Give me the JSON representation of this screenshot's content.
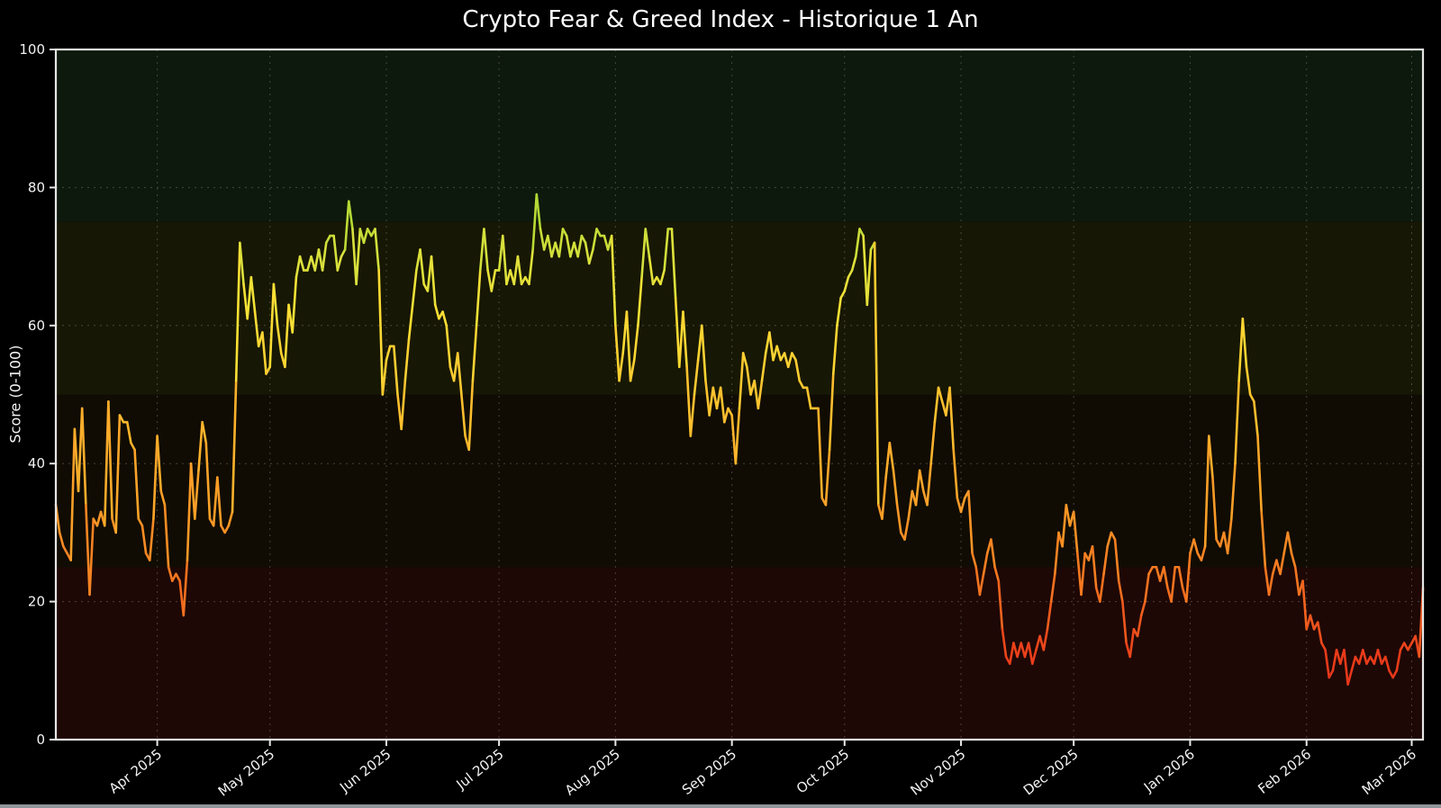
{
  "chart_data": {
    "type": "line",
    "title": "Crypto Fear & Greed Index - Historique 1 An",
    "ylabel": "Score (0-100)",
    "ylim": [
      0,
      100
    ],
    "y_ticks": [
      0,
      20,
      40,
      60,
      80,
      100
    ],
    "grid": true,
    "legend": null,
    "x_tick_labels": [
      "Apr 2025",
      "May 2025",
      "Jun 2025",
      "Jul 2025",
      "Aug 2025",
      "Sep 2025",
      "Oct 2025",
      "Nov 2025",
      "Dec 2025",
      "Jan 2026",
      "Feb 2026",
      "Mar 2026"
    ],
    "x_tick_day_offsets": [
      27,
      57,
      88,
      118,
      149,
      180,
      210,
      241,
      271,
      302,
      333,
      361
    ],
    "x_range_days": 365,
    "values": [
      34,
      30,
      28,
      27,
      26,
      45,
      36,
      48,
      34,
      21,
      32,
      31,
      33,
      31,
      49,
      32,
      30,
      47,
      46,
      46,
      43,
      42,
      32,
      31,
      27,
      26,
      32,
      44,
      36,
      34,
      25,
      23,
      24,
      23,
      18,
      26,
      40,
      32,
      39,
      46,
      43,
      32,
      31,
      38,
      31,
      30,
      31,
      33,
      52,
      72,
      66,
      61,
      67,
      62,
      57,
      59,
      53,
      54,
      66,
      60,
      56,
      54,
      63,
      59,
      67,
      70,
      68,
      68,
      70,
      68,
      71,
      68,
      72,
      73,
      73,
      68,
      70,
      71,
      78,
      74,
      66,
      74,
      72,
      74,
      73,
      74,
      68,
      50,
      55,
      57,
      57,
      50,
      45,
      52,
      58,
      63,
      68,
      71,
      66,
      65,
      70,
      63,
      61,
      62,
      60,
      54,
      52,
      56,
      50,
      44,
      42,
      52,
      60,
      68,
      74,
      68,
      65,
      68,
      68,
      73,
      66,
      68,
      66,
      70,
      66,
      67,
      66,
      71,
      79,
      74,
      71,
      73,
      70,
      72,
      70,
      74,
      73,
      70,
      72,
      70,
      73,
      72,
      69,
      71,
      74,
      73,
      73,
      71,
      73,
      60,
      52,
      56,
      62,
      52,
      55,
      60,
      67,
      74,
      70,
      66,
      67,
      66,
      68,
      74,
      74,
      64,
      54,
      62,
      54,
      44,
      50,
      55,
      60,
      52,
      47,
      51,
      48,
      51,
      46,
      48,
      47,
      40,
      48,
      56,
      54,
      50,
      52,
      48,
      52,
      56,
      59,
      55,
      57,
      55,
      56,
      54,
      56,
      55,
      52,
      51,
      51,
      48,
      48,
      48,
      35,
      34,
      42,
      53,
      60,
      64,
      65,
      67,
      68,
      70,
      74,
      73,
      63,
      71,
      72,
      34,
      32,
      38,
      43,
      39,
      34,
      30,
      29,
      32,
      36,
      34,
      39,
      36,
      34,
      40,
      46,
      51,
      49,
      47,
      51,
      42,
      35,
      33,
      35,
      36,
      27,
      25,
      21,
      24,
      27,
      29,
      25,
      23,
      16,
      12,
      11,
      14,
      12,
      14,
      12,
      14,
      11,
      13,
      15,
      13,
      16,
      20,
      24,
      30,
      28,
      34,
      31,
      33,
      27,
      21,
      27,
      26,
      28,
      22,
      20,
      24,
      28,
      30,
      29,
      23,
      20,
      14,
      12,
      16,
      15,
      18,
      20,
      24,
      25,
      25,
      23,
      25,
      22,
      20,
      25,
      25,
      22,
      20,
      27,
      29,
      27,
      26,
      28,
      44,
      38,
      29,
      28,
      30,
      27,
      32,
      40,
      52,
      61,
      54,
      50,
      49,
      44,
      33,
      25,
      21,
      24,
      26,
      24,
      27,
      30,
      27,
      25,
      21,
      23,
      16,
      18,
      16,
      17,
      14,
      13,
      9,
      10,
      13,
      11,
      13,
      8,
      10,
      12,
      11,
      13,
      11,
      12,
      11,
      13,
      11,
      12,
      10,
      9,
      10,
      13,
      14,
      13,
      14,
      15,
      12,
      22
    ],
    "bands": [
      {
        "lo": 75,
        "hi": 100,
        "color": "#0c190c"
      },
      {
        "lo": 50,
        "hi": 75,
        "color": "#171705"
      },
      {
        "lo": 25,
        "hi": 50,
        "color": "#100c04"
      },
      {
        "lo": 0,
        "hi": 25,
        "color": "#1d0806"
      }
    ],
    "line_gradient": [
      [
        0,
        "#d42414"
      ],
      [
        12,
        "#ea3c1a"
      ],
      [
        22,
        "#f4711f"
      ],
      [
        32,
        "#f99626"
      ],
      [
        42,
        "#fcb02b"
      ],
      [
        52,
        "#fdc930"
      ],
      [
        62,
        "#fce135"
      ],
      [
        70,
        "#d8e13c"
      ],
      [
        76,
        "#b4d934"
      ],
      [
        85,
        "#7cc42c"
      ],
      [
        100,
        "#3da832"
      ]
    ]
  },
  "style": {
    "background": "#000000",
    "spine_color": "#e6e6e4",
    "grid_color": "#9a9a8a",
    "tick_label_color": "#f2f2f2",
    "title_color": "#ffffff",
    "bottom_bar_color": "#90959a"
  }
}
